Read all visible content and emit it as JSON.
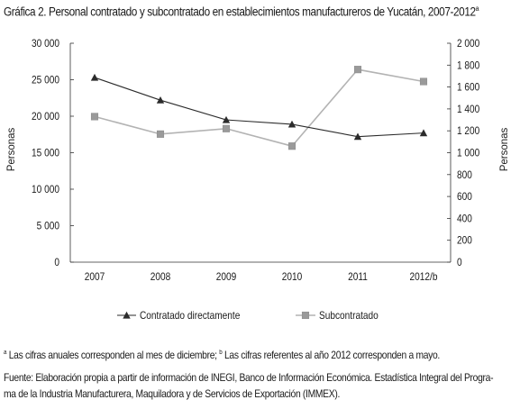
{
  "title": "Gráfica 2. Personal contratado y subcontratado en establecimientos manufactureros de Yucatán, 2007-2012",
  "title_sup": "a",
  "chart_data": {
    "type": "line",
    "categories": [
      "2007",
      "2008",
      "2009",
      "2010",
      "2011",
      "2012/b"
    ],
    "ylabel": "Personas",
    "y2label": "Personas",
    "ylim": [
      0,
      30000
    ],
    "y2lim": [
      0,
      2000
    ],
    "yticks": [
      "0",
      "5 000",
      "10 000",
      "15 000",
      "20 000",
      "25 000",
      "30 000"
    ],
    "y2ticks": [
      "0",
      "200",
      "400",
      "600",
      "800",
      "1 000",
      "1 200",
      "1 400",
      "1 600",
      "1 800",
      "2 000"
    ],
    "legend_position": "bottom",
    "grid": false,
    "series": [
      {
        "name": "Contratado directamente",
        "axis": "left",
        "marker": "triangle",
        "color": "#2b2b2b",
        "values": [
          25300,
          22200,
          19500,
          18900,
          17200,
          17700
        ]
      },
      {
        "name": "Subcontratado",
        "axis": "right",
        "marker": "square",
        "color": "#b3b3b3",
        "values": [
          1330,
          1170,
          1220,
          1060,
          1760,
          1650
        ]
      }
    ]
  },
  "notes": {
    "note_a_sup": "a",
    "note_a": " Las cifras anuales corresponden al mes de diciembre; ",
    "note_b_sup": "b",
    "note_b": " Las cifras referentes al año 2012 corresponden a mayo.",
    "source_line1": "Fuente: Elaboración propia a partir de información de INEGI, Banco de Información Económica. Estadística Integral del Progra-",
    "source_line2": "ma de la Industria Manufacturera, Maquiladora y de Servicios de Exportación (IMMEX)."
  }
}
